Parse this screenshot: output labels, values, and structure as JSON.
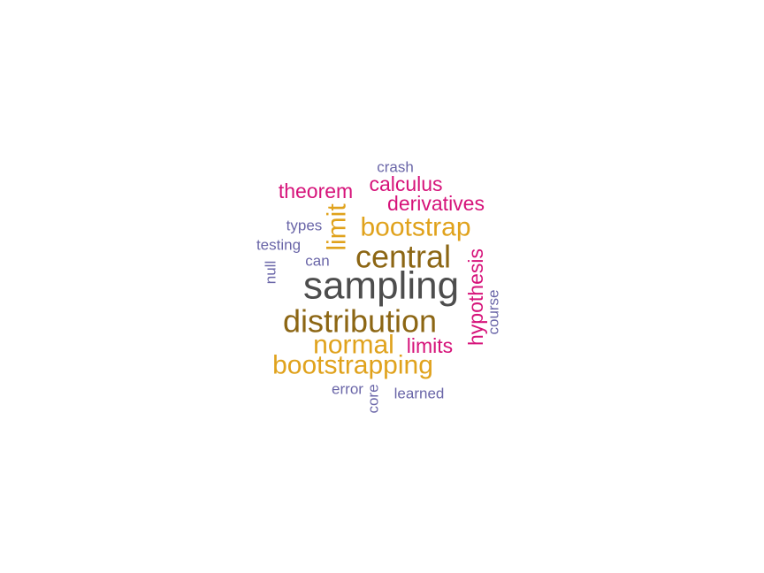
{
  "chart_data": {
    "type": "wordcloud",
    "words": [
      {
        "text": "sampling",
        "weight": 10,
        "color": "#4d4d4d"
      },
      {
        "text": "distribution",
        "weight": 8,
        "color": "#8c6614"
      },
      {
        "text": "central",
        "weight": 7,
        "color": "#8c6614"
      },
      {
        "text": "bootstrap",
        "weight": 6,
        "color": "#e0a21c"
      },
      {
        "text": "bootstrapping",
        "weight": 6,
        "color": "#e0a21c"
      },
      {
        "text": "normal",
        "weight": 6,
        "color": "#e0a21c"
      },
      {
        "text": "limit",
        "weight": 6,
        "color": "#e0a21c"
      },
      {
        "text": "hypothesis",
        "weight": 5,
        "color": "#d6137a"
      },
      {
        "text": "theorem",
        "weight": 5,
        "color": "#d6137a"
      },
      {
        "text": "calculus",
        "weight": 5,
        "color": "#d6137a"
      },
      {
        "text": "derivatives",
        "weight": 5,
        "color": "#d6137a"
      },
      {
        "text": "limits",
        "weight": 5,
        "color": "#d6137a"
      },
      {
        "text": "crash",
        "weight": 3,
        "color": "#6a66a8"
      },
      {
        "text": "types",
        "weight": 3,
        "color": "#6a66a8"
      },
      {
        "text": "testing",
        "weight": 3,
        "color": "#6a66a8"
      },
      {
        "text": "can",
        "weight": 3,
        "color": "#6a66a8"
      },
      {
        "text": "null",
        "weight": 3,
        "color": "#6a66a8"
      },
      {
        "text": "course",
        "weight": 3,
        "color": "#6a66a8"
      },
      {
        "text": "error",
        "weight": 3,
        "color": "#6a66a8"
      },
      {
        "text": "core",
        "weight": 3,
        "color": "#6a66a8"
      },
      {
        "text": "learned",
        "weight": 3,
        "color": "#6a66a8"
      }
    ]
  }
}
